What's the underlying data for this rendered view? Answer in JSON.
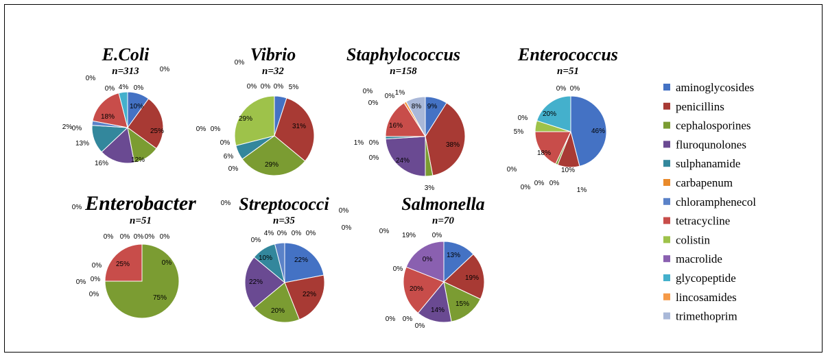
{
  "colors": {
    "aminoglycosides": "#4472c4",
    "penicillins": "#a83a34",
    "cephalosporines": "#7b9c32",
    "fluroqunolones": "#6a4a92",
    "sulphanamide": "#33879c",
    "carbapenum": "#e98a2b",
    "chloramphenecol": "#5b82c8",
    "tetracycline": "#c84d4a",
    "colistin": "#9ec24a",
    "macrolide": "#8a60b0",
    "glycopeptide": "#44b0cc",
    "lincosamides": "#f59a48",
    "trimethoprim": "#a9b8d8"
  },
  "legend": [
    "aminoglycosides",
    "penicillins",
    "cephalosporines",
    "fluroqunolones",
    "sulphanamide",
    "carbapenum",
    "chloramphenecol",
    "tetracycline",
    "colistin",
    "macrolide",
    "glycopeptide",
    "lincosamides",
    "trimethoprim"
  ],
  "chart_data": [
    {
      "type": "pie",
      "title": "E.Coli",
      "subtitle": "n=313",
      "slices": [
        {
          "category": "aminoglycosides",
          "value": 10,
          "label": "10%"
        },
        {
          "category": "penicillins",
          "value": 25,
          "label": "25%"
        },
        {
          "category": "cephalosporines",
          "value": 12,
          "label": "12%"
        },
        {
          "category": "fluroqunolones",
          "value": 16,
          "label": "16%"
        },
        {
          "category": "sulphanamide",
          "value": 13,
          "label": "13%"
        },
        {
          "category": "carbapenum",
          "value": 0,
          "label": "0%"
        },
        {
          "category": "chloramphenecol",
          "value": 2,
          "label": "2%"
        },
        {
          "category": "tetracycline",
          "value": 18,
          "label": "18%"
        },
        {
          "category": "colistin",
          "value": 0,
          "label": "0%"
        },
        {
          "category": "macrolide",
          "value": 0,
          "label": "0%"
        },
        {
          "category": "glycopeptide",
          "value": 4,
          "label": "4%"
        },
        {
          "category": "lincosamides",
          "value": 0,
          "label": "0%"
        },
        {
          "category": "trimethoprim",
          "value": 0,
          "label": "0%"
        }
      ]
    },
    {
      "type": "pie",
      "title": "Vibrio",
      "subtitle": "n=32",
      "slices": [
        {
          "category": "aminoglycosides",
          "value": 5,
          "label": "5%"
        },
        {
          "category": "penicillins",
          "value": 31,
          "label": "31%"
        },
        {
          "category": "cephalosporines",
          "value": 29,
          "label": "29%"
        },
        {
          "category": "fluroqunolones",
          "value": 0,
          "label": "0%"
        },
        {
          "category": "sulphanamide",
          "value": 6,
          "label": "6%"
        },
        {
          "category": "carbapenum",
          "value": 0,
          "label": "0%"
        },
        {
          "category": "chloramphenecol",
          "value": 0,
          "label": "0%"
        },
        {
          "category": "tetracycline",
          "value": 0,
          "label": "0%"
        },
        {
          "category": "colistin",
          "value": 29,
          "label": "29%"
        },
        {
          "category": "macrolide",
          "value": 0,
          "label": "0%"
        },
        {
          "category": "glycopeptide",
          "value": 0,
          "label": "0%"
        },
        {
          "category": "lincosamides",
          "value": 0,
          "label": "0%"
        },
        {
          "category": "trimethoprim",
          "value": 0,
          "label": "0%"
        }
      ]
    },
    {
      "type": "pie",
      "title": "Staphylococcus",
      "subtitle": "n=158",
      "slices": [
        {
          "category": "aminoglycosides",
          "value": 9,
          "label": "9%"
        },
        {
          "category": "penicillins",
          "value": 38,
          "label": "38%"
        },
        {
          "category": "cephalosporines",
          "value": 3,
          "label": "3%"
        },
        {
          "category": "fluroqunolones",
          "value": 24,
          "label": "24%"
        },
        {
          "category": "sulphanamide",
          "value": 1,
          "label": "1%"
        },
        {
          "category": "carbapenum",
          "value": 0,
          "label": "0%"
        },
        {
          "category": "chloramphenecol",
          "value": 0,
          "label": "0%"
        },
        {
          "category": "tetracycline",
          "value": 16,
          "label": "16%"
        },
        {
          "category": "colistin",
          "value": 0,
          "label": "0%"
        },
        {
          "category": "macrolide",
          "value": 0,
          "label": "0%"
        },
        {
          "category": "glycopeptide",
          "value": 0,
          "label": "0%"
        },
        {
          "category": "lincosamides",
          "value": 1,
          "label": "1%"
        },
        {
          "category": "trimethoprim",
          "value": 8,
          "label": "8%"
        }
      ]
    },
    {
      "type": "pie",
      "title": "Enterococcus",
      "subtitle": "n=51",
      "slices": [
        {
          "category": "aminoglycosides",
          "value": 46,
          "label": "46%"
        },
        {
          "category": "penicillins",
          "value": 10,
          "label": "10%"
        },
        {
          "category": "cephalosporines",
          "value": 1,
          "label": "1%"
        },
        {
          "category": "fluroqunolones",
          "value": 0,
          "label": "0%"
        },
        {
          "category": "sulphanamide",
          "value": 0,
          "label": "0%"
        },
        {
          "category": "carbapenum",
          "value": 0,
          "label": "0%"
        },
        {
          "category": "chloramphenecol",
          "value": 0,
          "label": "0%"
        },
        {
          "category": "tetracycline",
          "value": 18,
          "label": "18%"
        },
        {
          "category": "colistin",
          "value": 5,
          "label": "5%"
        },
        {
          "category": "macrolide",
          "value": 0,
          "label": "0%"
        },
        {
          "category": "glycopeptide",
          "value": 20,
          "label": "20%"
        },
        {
          "category": "lincosamides",
          "value": 0,
          "label": "0%"
        },
        {
          "category": "trimethoprim",
          "value": 0,
          "label": "0%"
        }
      ]
    },
    {
      "type": "pie",
      "title": "Enterobacter",
      "subtitle": "n=51",
      "slices": [
        {
          "category": "aminoglycosides",
          "value": 0,
          "label": "0%"
        },
        {
          "category": "penicillins",
          "value": 0,
          "label": "0%"
        },
        {
          "category": "cephalosporines",
          "value": 75,
          "label": "75%"
        },
        {
          "category": "fluroqunolones",
          "value": 0,
          "label": "0%"
        },
        {
          "category": "sulphanamide",
          "value": 0,
          "label": "0%"
        },
        {
          "category": "carbapenum",
          "value": 0,
          "label": "0%"
        },
        {
          "category": "chloramphenecol",
          "value": 0,
          "label": "0%"
        },
        {
          "category": "tetracycline",
          "value": 25,
          "label": "25%"
        },
        {
          "category": "colistin",
          "value": 0,
          "label": "0%"
        },
        {
          "category": "macrolide",
          "value": 0,
          "label": "0%"
        },
        {
          "category": "glycopeptide",
          "value": 0,
          "label": "0%"
        },
        {
          "category": "lincosamides",
          "value": 0,
          "label": "0%"
        },
        {
          "category": "trimethoprim",
          "value": 0,
          "label": "0%"
        }
      ]
    },
    {
      "type": "pie",
      "title": "Streptococci",
      "subtitle": "n=35",
      "slices": [
        {
          "category": "aminoglycosides",
          "value": 22,
          "label": "22%"
        },
        {
          "category": "penicillins",
          "value": 22,
          "label": "22%"
        },
        {
          "category": "cephalosporines",
          "value": 20,
          "label": "20%"
        },
        {
          "category": "fluroqunolones",
          "value": 22,
          "label": "22%"
        },
        {
          "category": "sulphanamide",
          "value": 10,
          "label": "10%"
        },
        {
          "category": "carbapenum",
          "value": 0,
          "label": "0%"
        },
        {
          "category": "chloramphenecol",
          "value": 4,
          "label": "4%"
        },
        {
          "category": "tetracycline",
          "value": 0,
          "label": "0%"
        },
        {
          "category": "colistin",
          "value": 0,
          "label": "0%"
        },
        {
          "category": "macrolide",
          "value": 0,
          "label": "0%"
        },
        {
          "category": "glycopeptide",
          "value": 0,
          "label": "0%"
        },
        {
          "category": "lincosamides",
          "value": 0,
          "label": "0%"
        },
        {
          "category": "trimethoprim",
          "value": 0,
          "label": "0%"
        }
      ]
    },
    {
      "type": "pie",
      "title": "Salmonella",
      "subtitle": "n=70",
      "slices": [
        {
          "category": "aminoglycosides",
          "value": 13,
          "label": "13%"
        },
        {
          "category": "penicillins",
          "value": 19,
          "label": "19%"
        },
        {
          "category": "cephalosporines",
          "value": 15,
          "label": "15%"
        },
        {
          "category": "fluroqunolones",
          "value": 14,
          "label": "14%"
        },
        {
          "category": "sulphanamide",
          "value": 0,
          "label": "0%"
        },
        {
          "category": "carbapenum",
          "value": 0,
          "label": "0%"
        },
        {
          "category": "chloramphenecol",
          "value": 0,
          "label": "0%"
        },
        {
          "category": "tetracycline",
          "value": 20,
          "label": "20%"
        },
        {
          "category": "colistin",
          "value": 0,
          "label": "0%"
        },
        {
          "category": "macrolide",
          "value": 19,
          "label": "19%"
        },
        {
          "category": "glycopeptide",
          "value": 0,
          "label": "0%"
        },
        {
          "category": "lincosamides",
          "value": 0,
          "label": "0%"
        },
        {
          "category": "trimethoprim",
          "value": 0,
          "label": "0%"
        }
      ]
    }
  ]
}
